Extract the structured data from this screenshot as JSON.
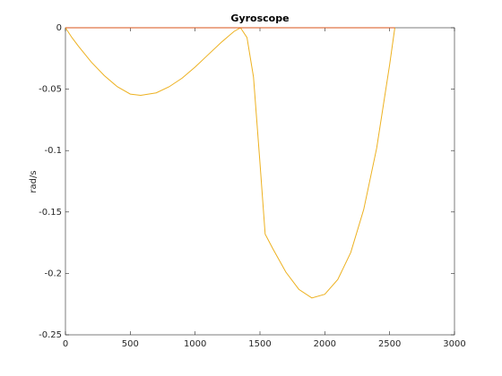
{
  "chart_data": {
    "type": "line",
    "title": "Gyroscope",
    "y_label": "rad/s",
    "xlim": [
      0,
      3000
    ],
    "ylim": [
      -0.25,
      0
    ],
    "xticks": [
      0,
      500,
      1000,
      1500,
      2000,
      2500,
      3000
    ],
    "yticks": [
      -0.25,
      -0.2,
      -0.15,
      -0.1,
      -0.05,
      0
    ],
    "grid": false,
    "series": [
      {
        "color": "#edb120",
        "x": [
          0,
          50,
          100,
          200,
          300,
          400,
          500,
          580,
          700,
          800,
          900,
          1000,
          1100,
          1200,
          1300,
          1350,
          1400,
          1450,
          1500,
          1540,
          1600,
          1700,
          1800,
          1900,
          2000,
          2100,
          2200,
          2300,
          2400,
          2500,
          2540
        ],
        "values": [
          0,
          -0.008,
          -0.015,
          -0.028,
          -0.039,
          -0.048,
          -0.054,
          -0.055,
          -0.053,
          -0.048,
          -0.041,
          -0.032,
          -0.022,
          -0.012,
          -0.003,
          0,
          -0.008,
          -0.04,
          -0.11,
          -0.168,
          -0.18,
          -0.199,
          -0.213,
          -0.22,
          -0.217,
          -0.205,
          -0.183,
          -0.148,
          -0.098,
          -0.03,
          0
        ]
      },
      {
        "color": "#d95319",
        "x": [
          0,
          2540
        ],
        "values": [
          0,
          0
        ]
      }
    ]
  }
}
